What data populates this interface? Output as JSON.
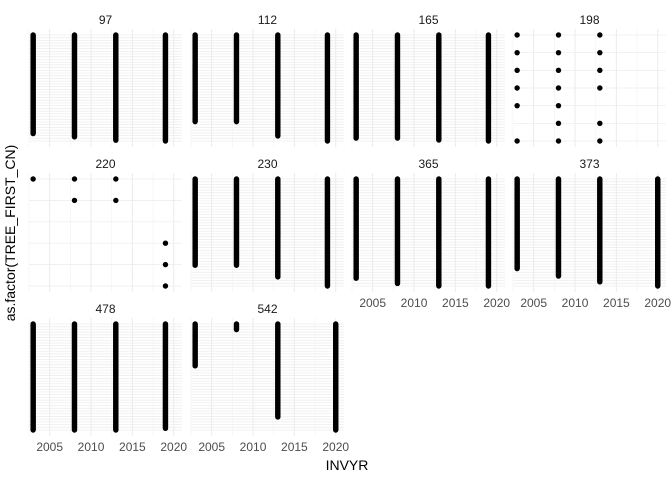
{
  "chart_data": {
    "type": "scatter",
    "facet_variable": "panel",
    "xlabel": "INVYR",
    "ylabel": "as.factor(TREE_FIRST_CN)",
    "xlim": [
      2002.5,
      2021
    ],
    "x_ticks": [
      2005,
      2010,
      2015,
      2020
    ],
    "x_tick_labels": [
      "2005",
      "2010",
      "2015",
      "2020"
    ],
    "y_tick_labels_shown": false,
    "grid": true,
    "point_color": "#000000",
    "grid_color": "#ebebeb",
    "panels": [
      {
        "label": "97",
        "columns": [
          {
            "x": 2003,
            "levels": [
              10,
              130
            ]
          },
          {
            "x": 2008,
            "levels": [
              6,
              130
            ]
          },
          {
            "x": 2013,
            "levels": [
              2,
              130
            ]
          },
          {
            "x": 2019,
            "levels": [
              1,
              130
            ]
          }
        ]
      },
      {
        "label": "112",
        "columns": [
          {
            "x": 2003,
            "levels": [
              20,
              105
            ]
          },
          {
            "x": 2008,
            "levels": [
              20,
              105
            ]
          },
          {
            "x": 2013,
            "levels": [
              6,
              105
            ]
          },
          {
            "x": 2019,
            "levels": [
              1,
              105
            ]
          }
        ]
      },
      {
        "label": "165",
        "columns": [
          {
            "x": 2003,
            "levels": [
              4,
              110
            ]
          },
          {
            "x": 2008,
            "levels": [
              4,
              110
            ]
          },
          {
            "x": 2013,
            "levels": [
              2,
              110
            ]
          },
          {
            "x": 2019,
            "levels": [
              1,
              110
            ]
          }
        ]
      },
      {
        "label": "198",
        "columns": [
          {
            "x": 2003,
            "levels": [
              1,
              3,
              4,
              5,
              6,
              7
            ]
          },
          {
            "x": 2008,
            "levels": [
              1,
              2,
              3,
              4,
              5,
              6,
              7
            ]
          },
          {
            "x": 2013,
            "levels": [
              1,
              2,
              4,
              5,
              6,
              7
            ]
          }
        ]
      },
      {
        "label": "220",
        "columns": [
          {
            "x": 2003,
            "levels": [
              6
            ]
          },
          {
            "x": 2008,
            "levels": [
              5,
              6
            ]
          },
          {
            "x": 2013,
            "levels": [
              5,
              6
            ]
          },
          {
            "x": 2019,
            "levels": [
              1,
              2,
              3
            ]
          }
        ]
      },
      {
        "label": "230",
        "columns": [
          {
            "x": 2003,
            "levels": [
              26,
              130
            ]
          },
          {
            "x": 2008,
            "levels": [
              26,
              130
            ]
          },
          {
            "x": 2013,
            "levels": [
              12,
              130
            ]
          },
          {
            "x": 2019,
            "levels": [
              1,
              130
            ]
          }
        ]
      },
      {
        "label": "365",
        "columns": [
          {
            "x": 2003,
            "levels": [
              10,
              125
            ]
          },
          {
            "x": 2008,
            "levels": [
              4,
              125
            ]
          },
          {
            "x": 2013,
            "levels": [
              1,
              125
            ]
          },
          {
            "x": 2019,
            "levels": [
              1,
              125
            ]
          }
        ]
      },
      {
        "label": "373",
        "columns": [
          {
            "x": 2003,
            "levels": [
              22,
              130
            ]
          },
          {
            "x": 2008,
            "levels": [
              13,
              130
            ]
          },
          {
            "x": 2013,
            "levels": [
              6,
              130
            ]
          },
          {
            "x": 2020,
            "levels": [
              1,
              130
            ]
          }
        ]
      },
      {
        "label": "478",
        "columns": [
          {
            "x": 2003,
            "levels": [
              1,
              130
            ]
          },
          {
            "x": 2008,
            "levels": [
              1,
              130
            ]
          },
          {
            "x": 2013,
            "levels": [
              1,
              130
            ]
          },
          {
            "x": 2019,
            "levels": [
              3,
              130
            ]
          }
        ]
      },
      {
        "label": "542",
        "columns": [
          {
            "x": 2003,
            "levels": [
              70,
              115
            ]
          },
          {
            "x": 2008,
            "levels": [
              109,
              115
            ]
          },
          {
            "x": 2013,
            "levels": [
              15,
              115
            ]
          },
          {
            "x": 2020,
            "levels": [
              1,
              115
            ]
          }
        ]
      }
    ]
  }
}
